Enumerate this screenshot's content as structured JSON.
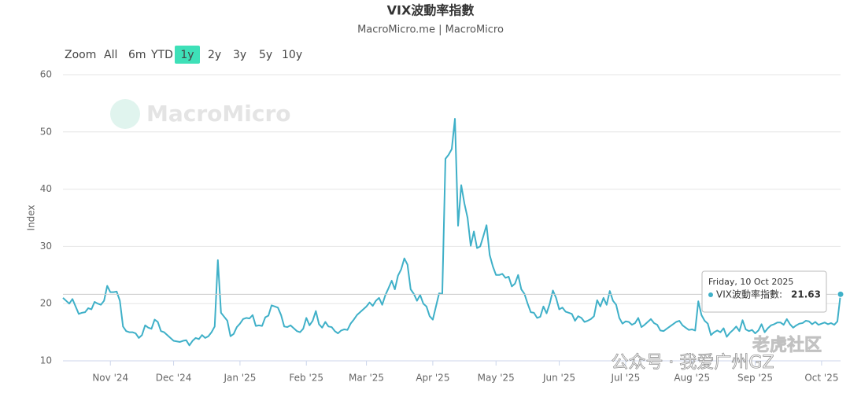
{
  "chart_data": {
    "type": "line",
    "title": "VIX波動率指數",
    "subtitle": "MacroMicro.me | MacroMicro",
    "y_axis_label": "Index",
    "range_selector": {
      "label": "Zoom",
      "buttons": [
        "All",
        "6m",
        "YTD",
        "1y",
        "2y",
        "3y",
        "5y",
        "10y"
      ],
      "selected": 3
    },
    "xlim": [
      0,
      246
    ],
    "xticks": [
      {
        "value": 15,
        "label": "Nov '24"
      },
      {
        "value": 35,
        "label": "Dec '24"
      },
      {
        "value": 56,
        "label": "Jan '25"
      },
      {
        "value": 77,
        "label": "Feb '25"
      },
      {
        "value": 96,
        "label": "Mar '25"
      },
      {
        "value": 117,
        "label": "Apr '25"
      },
      {
        "value": 137,
        "label": "May '25"
      },
      {
        "value": 157,
        "label": "Jun '25"
      },
      {
        "value": 178,
        "label": "Jul '25"
      },
      {
        "value": 199,
        "label": "Aug '25"
      },
      {
        "value": 219,
        "label": "Sep '25"
      },
      {
        "value": 240,
        "label": "Oct '25"
      }
    ],
    "ylim": [
      10,
      60
    ],
    "yticks": [
      10,
      20,
      30,
      40,
      50,
      60
    ],
    "grid": true,
    "series": [
      {
        "name": "VIX波動率指數",
        "color": "#3fb0c8",
        "values": [
          21,
          20.5,
          20,
          20.8,
          19.5,
          18.2,
          18.4,
          18.5,
          19.2,
          19.0,
          20.3,
          20.0,
          19.8,
          20.5,
          23.1,
          22.0,
          22.0,
          22.1,
          20.5,
          16.0,
          15.2,
          15.0,
          15.0,
          14.8,
          14.0,
          14.5,
          16.2,
          15.8,
          15.6,
          17.2,
          16.8,
          15.2,
          15.0,
          14.5,
          14.0,
          13.5,
          13.4,
          13.3,
          13.5,
          13.6,
          12.7,
          13.5,
          14.0,
          13.8,
          14.5,
          14.0,
          14.3,
          15.0,
          16.0,
          27.6,
          18.4,
          17.7,
          17.0,
          14.3,
          14.7,
          15.9,
          16.5,
          17.3,
          17.5,
          17.4,
          18.0,
          16.1,
          16.2,
          16.1,
          17.6,
          17.9,
          19.7,
          19.5,
          19.3,
          18.0,
          16.0,
          15.9,
          16.2,
          15.7,
          15.2,
          15.0,
          15.6,
          17.5,
          16.2,
          17.0,
          18.7,
          16.4,
          15.8,
          16.8,
          16.0,
          15.9,
          15.2,
          14.8,
          15.3,
          15.5,
          15.4,
          16.5,
          17.2,
          18.0,
          18.5,
          19.0,
          19.5,
          20.2,
          19.6,
          20.5,
          21.0,
          19.8,
          21.5,
          22.7,
          24.0,
          22.5,
          24.9,
          26.0,
          27.9,
          26.8,
          22.5,
          21.7,
          20.5,
          21.5,
          20.0,
          19.5,
          17.8,
          17.2,
          19.5,
          21.8,
          21.7,
          45.3,
          46.0,
          47.0,
          52.3,
          33.6,
          40.7,
          37.5,
          35.0,
          30.1,
          32.6,
          29.7,
          30.0,
          31.8,
          33.7,
          28.5,
          26.5,
          25.0,
          25.0,
          25.2,
          24.5,
          24.7,
          23.0,
          23.5,
          25.0,
          22.5,
          21.7,
          20.0,
          18.5,
          18.4,
          17.5,
          17.7,
          19.5,
          18.3,
          20.0,
          22.3,
          21.0,
          19.0,
          19.3,
          18.6,
          18.4,
          18.2,
          17.0,
          17.8,
          17.5,
          16.8,
          17.0,
          17.3,
          17.8,
          20.6,
          19.5,
          21.0,
          19.8,
          22.2,
          20.5,
          19.8,
          17.5,
          16.5,
          16.9,
          16.8,
          16.3,
          16.6,
          17.5,
          15.9,
          16.3,
          16.8,
          17.3,
          16.6,
          16.3,
          15.3,
          15.2,
          15.6,
          16.0,
          16.4,
          16.8,
          17.0,
          16.2,
          15.8,
          15.4,
          15.5,
          15.3,
          20.4,
          18.0,
          17.0,
          16.5,
          14.5,
          15.0,
          15.3,
          15.0,
          15.7,
          14.2,
          14.9,
          15.4,
          16.0,
          15.2,
          17.1,
          15.5,
          15.2,
          15.4,
          14.8,
          15.3,
          16.4,
          15.0,
          15.7,
          16.2,
          16.4,
          16.7,
          16.7,
          16.3,
          17.3,
          16.4,
          15.8,
          16.2,
          16.5,
          16.6,
          17.0,
          16.9,
          16.4,
          16.8,
          16.3,
          16.5,
          16.7,
          16.4,
          16.6,
          16.3,
          16.9,
          21.63
        ]
      }
    ],
    "tooltip": {
      "date": "Friday, 10 Oct 2025",
      "label": "VIX波動率指數:"
    }
  },
  "watermarks": [
    "MacroMicro",
    "老虎社区",
    "公众号 · 我爱广州GZ"
  ]
}
